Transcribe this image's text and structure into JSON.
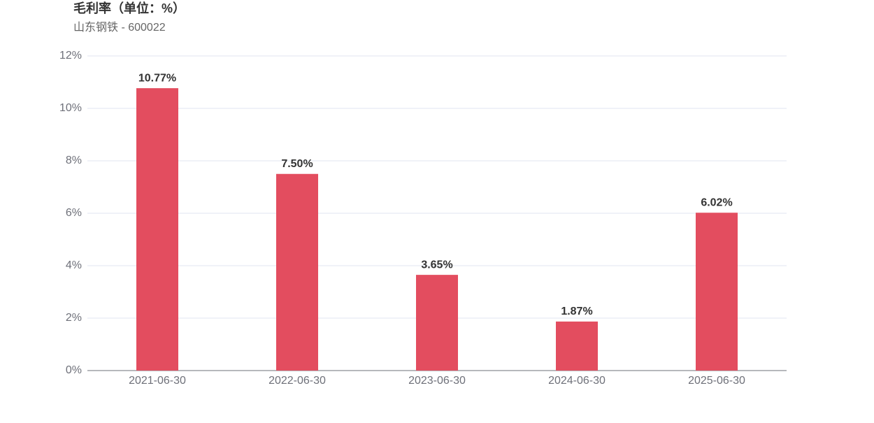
{
  "chart_data": {
    "type": "bar",
    "title": "毛利率（单位：%）",
    "subtitle": "山东钢铁 - 600022",
    "categories": [
      "2021-06-30",
      "2022-06-30",
      "2023-06-30",
      "2024-06-30",
      "2025-06-30"
    ],
    "values": [
      10.77,
      7.5,
      3.65,
      1.87,
      6.02
    ],
    "value_labels": [
      "10.77%",
      "7.50%",
      "3.65%",
      "1.87%",
      "6.02%"
    ],
    "color": "#e34d5f",
    "ylim": [
      0,
      12
    ],
    "yticks": [
      {
        "value": 0,
        "label": "0%"
      },
      {
        "value": 2,
        "label": "2%"
      },
      {
        "value": 4,
        "label": "4%"
      },
      {
        "value": 6,
        "label": "6%"
      },
      {
        "value": 8,
        "label": "8%"
      },
      {
        "value": 10,
        "label": "10%"
      },
      {
        "value": 12,
        "label": "12%"
      }
    ],
    "grid": true
  }
}
